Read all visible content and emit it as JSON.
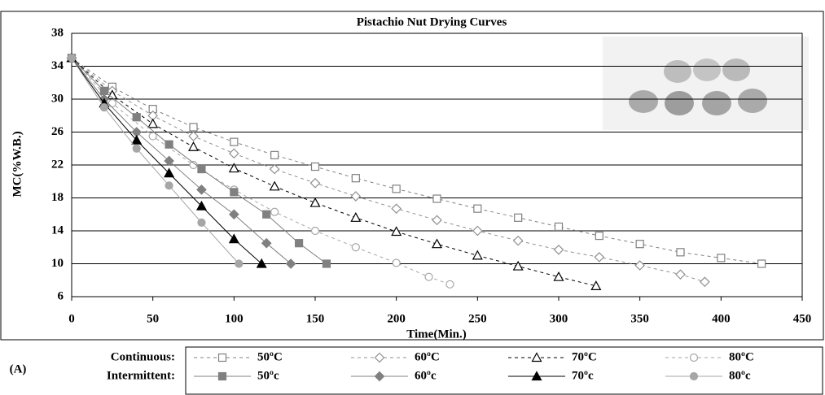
{
  "chart_data": {
    "type": "line",
    "title": "Pistachio Nut Drying Curves",
    "x_label": "Time(Min.)",
    "y_label": "MC(%W.B.)",
    "panel_label": "(A)",
    "xlim": [
      0,
      450
    ],
    "xticks": [
      0,
      50,
      100,
      150,
      200,
      250,
      300,
      350,
      400,
      450
    ],
    "ylim": [
      6,
      38
    ],
    "yticks": [
      6,
      10,
      14,
      18,
      22,
      26,
      30,
      34,
      38
    ],
    "grid": true,
    "series_groups": [
      {
        "name": "Continuous:",
        "dash": "4,4",
        "filled": false,
        "series": [
          {
            "name": "50ºC",
            "color": "#808080",
            "marker": "square",
            "x": [
              0,
              25,
              50,
              75,
              100,
              125,
              150,
              175,
              200,
              225,
              250,
              275,
              300,
              325,
              350,
              375,
              400,
              425
            ],
            "values": [
              35,
              31.5,
              28.8,
              26.6,
              24.8,
              23.2,
              21.8,
              20.4,
              19.1,
              17.9,
              16.7,
              15.6,
              14.5,
              13.4,
              12.4,
              11.4,
              10.7,
              10
            ]
          },
          {
            "name": "60ºC",
            "color": "#909090",
            "marker": "diamond",
            "x": [
              0,
              25,
              50,
              75,
              100,
              125,
              150,
              175,
              200,
              225,
              250,
              275,
              300,
              325,
              350,
              375,
              390
            ],
            "values": [
              35,
              31,
              28,
              25.5,
              23.4,
              21.5,
              19.8,
              18.2,
              16.7,
              15.3,
              14,
              12.8,
              11.7,
              10.8,
              9.8,
              8.7,
              7.8
            ]
          },
          {
            "name": "70ºC",
            "color": "#000000",
            "marker": "triangle",
            "x": [
              0,
              25,
              50,
              75,
              100,
              125,
              150,
              175,
              200,
              225,
              250,
              275,
              300,
              323
            ],
            "values": [
              35,
              30.5,
              27,
              24.2,
              21.6,
              19.4,
              17.4,
              15.6,
              13.9,
              12.4,
              11,
              9.7,
              8.4,
              7.3
            ]
          },
          {
            "name": "80ºC",
            "color": "#a6a6a6",
            "marker": "circle",
            "x": [
              0,
              25,
              50,
              75,
              100,
              125,
              150,
              175,
              200,
              220,
              233
            ],
            "values": [
              35,
              29.5,
              25.5,
              22,
              19,
              16.3,
              14,
              12,
              10.1,
              8.4,
              7.5
            ]
          }
        ]
      },
      {
        "name": "Intermittent:",
        "dash": "none",
        "filled": true,
        "series": [
          {
            "name": "50ºc",
            "color": "#808080",
            "marker": "square",
            "x": [
              0,
              20,
              40,
              60,
              80,
              100,
              120,
              140,
              157
            ],
            "values": [
              35,
              31,
              27.8,
              24.5,
              21.5,
              18.7,
              16,
              12.5,
              10
            ]
          },
          {
            "name": "60ºc",
            "color": "#808080",
            "marker": "diamond",
            "x": [
              0,
              20,
              40,
              60,
              80,
              100,
              120,
              135
            ],
            "values": [
              35,
              30,
              26,
              22.5,
              19,
              16,
              12.5,
              10
            ]
          },
          {
            "name": "70ºc",
            "color": "#000000",
            "marker": "triangle",
            "x": [
              0,
              20,
              40,
              60,
              80,
              100,
              117
            ],
            "values": [
              35,
              29.5,
              25,
              21,
              17,
              13,
              10
            ]
          },
          {
            "name": "80ºc",
            "color": "#a6a6a6",
            "marker": "circle",
            "x": [
              0,
              20,
              40,
              60,
              80,
              103
            ],
            "values": [
              35,
              29,
              24,
              19.5,
              15,
              10
            ]
          }
        ]
      }
    ]
  }
}
